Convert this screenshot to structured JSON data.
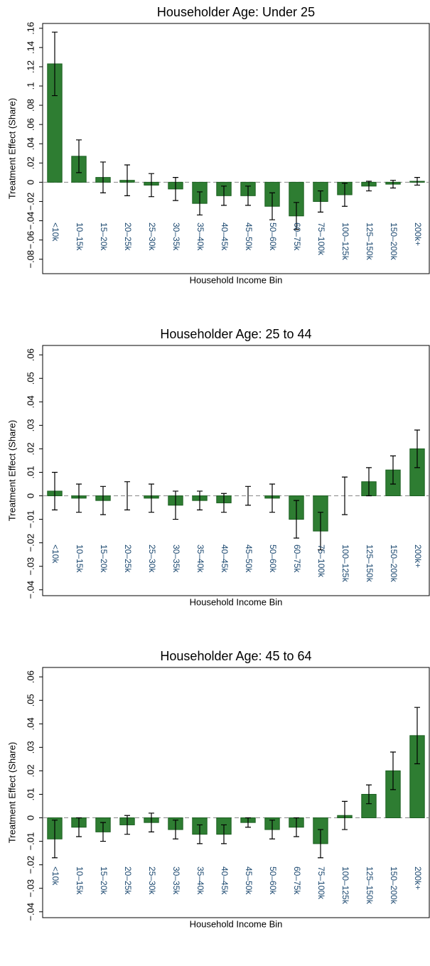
{
  "chart_data": [
    {
      "type": "bar",
      "title": "Householder Age: Under 25",
      "x_label": "Household Income Bin",
      "y_label": "Treatment Effect (Share)",
      "categories": [
        "<10k",
        "10–15k",
        "15–20k",
        "20–25k",
        "25–30k",
        "30–35k",
        "35–40k",
        "40–45k",
        "45–50k",
        "50–60k",
        "60–75k",
        "75–100k",
        "100–125k",
        "125–150k",
        "150–200k",
        "200k+"
      ],
      "values": [
        0.123,
        0.027,
        0.005,
        0.002,
        -0.003,
        -0.007,
        -0.022,
        -0.014,
        -0.014,
        -0.025,
        -0.035,
        -0.02,
        -0.013,
        -0.004,
        -0.002,
        0.001
      ],
      "errors": [
        0.033,
        0.017,
        0.016,
        0.016,
        0.012,
        0.012,
        0.012,
        0.01,
        0.01,
        0.014,
        0.014,
        0.011,
        0.012,
        0.005,
        0.004,
        0.004
      ],
      "color": "#2e7d32",
      "ylim": [
        -0.095,
        0.165
      ],
      "yticks": [
        {
          "value": -0.08,
          "label": "−.08"
        },
        {
          "value": -0.06,
          "label": "−.06"
        },
        {
          "value": -0.04,
          "label": "−.04"
        },
        {
          "value": -0.02,
          "label": "−.02"
        },
        0,
        {
          "value": 0.02,
          "label": ".02"
        },
        {
          "value": 0.04,
          "label": ".04"
        },
        {
          "value": 0.06,
          "label": ".06"
        },
        {
          "value": 0.08,
          "label": ".08"
        },
        {
          "value": 0.1,
          "label": ".1"
        },
        {
          "value": 0.12,
          "label": ".12"
        },
        {
          "value": 0.14,
          "label": ".14"
        },
        {
          "value": 0.16,
          "label": ".16"
        }
      ]
    },
    {
      "type": "bar",
      "title": "Householder Age: 25 to 44",
      "x_label": "Household Income Bin",
      "y_label": "Treatment Effect (Share)",
      "categories": [
        "<10k",
        "10–15k",
        "15–20k",
        "20–25k",
        "25–30k",
        "30–35k",
        "35–40k",
        "40–45k",
        "45–50k",
        "50–60k",
        "60–75k",
        "75–100k",
        "100–125k",
        "125–150k",
        "150–200k",
        "200k+"
      ],
      "values": [
        0.002,
        -0.001,
        -0.002,
        0,
        -0.001,
        -0.004,
        -0.002,
        -0.003,
        0,
        -0.001,
        -0.01,
        -0.015,
        0,
        0.006,
        0.011,
        0.02
      ],
      "errors": [
        0.008,
        0.006,
        0.006,
        0.006,
        0.006,
        0.006,
        0.004,
        0.004,
        0.004,
        0.006,
        0.008,
        0.008,
        0.008,
        0.006,
        0.006,
        0.008
      ],
      "color": "#2e7d32",
      "ylim": [
        -0.0425,
        0.064
      ],
      "yticks": [
        {
          "value": -0.04,
          "label": "−.04"
        },
        {
          "value": -0.03,
          "label": "−.03"
        },
        {
          "value": -0.02,
          "label": "−.02"
        },
        {
          "value": -0.01,
          "label": "−.01"
        },
        0,
        {
          "value": 0.01,
          "label": ".01"
        },
        {
          "value": 0.02,
          "label": ".02"
        },
        {
          "value": 0.03,
          "label": ".03"
        },
        {
          "value": 0.04,
          "label": ".04"
        },
        {
          "value": 0.05,
          "label": ".05"
        },
        {
          "value": 0.06,
          "label": ".06"
        }
      ]
    },
    {
      "type": "bar",
      "title": "Householder Age: 45 to 64",
      "x_label": "Household Income Bin",
      "y_label": "Treatment Effect (Share)",
      "categories": [
        "<10k",
        "10–15k",
        "15–20k",
        "20–25k",
        "25–30k",
        "30–35k",
        "35–40k",
        "40–45k",
        "45–50k",
        "50–60k",
        "60–75k",
        "75–100k",
        "100–125k",
        "125–150k",
        "150–200k",
        "200k+"
      ],
      "values": [
        -0.009,
        -0.004,
        -0.006,
        -0.003,
        -0.002,
        -0.005,
        -0.007,
        -0.007,
        -0.002,
        -0.005,
        -0.004,
        -0.011,
        0.001,
        0.01,
        0.02,
        0.035
      ],
      "errors": [
        0.008,
        0.004,
        0.004,
        0.004,
        0.004,
        0.004,
        0.004,
        0.004,
        0.002,
        0.004,
        0.004,
        0.006,
        0.006,
        0.004,
        0.008,
        0.012
      ],
      "color": "#2e7d32",
      "ylim": [
        -0.0425,
        0.064
      ],
      "yticks": [
        {
          "value": -0.04,
          "label": "−.04"
        },
        {
          "value": -0.03,
          "label": "−.03"
        },
        {
          "value": -0.02,
          "label": "−.02"
        },
        {
          "value": -0.01,
          "label": "−.01"
        },
        0,
        {
          "value": 0.01,
          "label": ".01"
        },
        {
          "value": 0.02,
          "label": ".02"
        },
        {
          "value": 0.03,
          "label": ".03"
        },
        {
          "value": 0.04,
          "label": ".04"
        },
        {
          "value": 0.05,
          "label": ".05"
        },
        {
          "value": 0.06,
          "label": ".06"
        }
      ]
    }
  ]
}
